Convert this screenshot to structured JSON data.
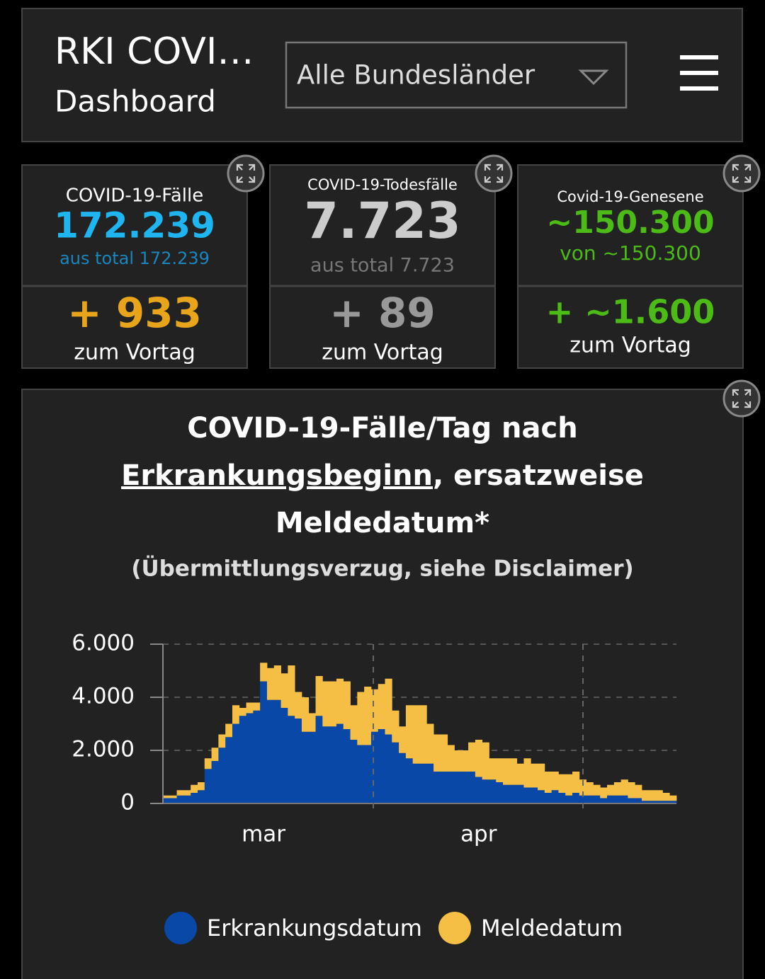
{
  "header": {
    "title": "RKI COVI…",
    "subtitle": "Dashboard",
    "dropdown": "Alle Bundesländer"
  },
  "cards": [
    {
      "label": "COVID-19-Fälle",
      "value": "172.239",
      "total": "aus total 172.239",
      "delta": "+ 933",
      "delta_label": "zum Vortag"
    },
    {
      "label": "COVID-19-Todesfälle",
      "value": "7.723",
      "total": "aus total 7.723",
      "delta": "+ 89",
      "delta_label": "zum Vortag"
    },
    {
      "label": "Covid-19-Genesene",
      "value": "~150.300",
      "total": "von ~150.300",
      "delta": "+ ~1.600",
      "delta_label": "zum Vortag"
    }
  ],
  "chart_data": {
    "type": "stacked_bar",
    "title": [
      "COVID-19-Fälle/Tag nach",
      "Erkrankungsbeginn",
      ", ersatzweise",
      "Meldedatum*"
    ],
    "subtitle": "(Übermittlungsverzug, siehe Disclaimer)",
    "categories": [
      null,
      null,
      null,
      null,
      null,
      null,
      null,
      null,
      null,
      null,
      null,
      null,
      null,
      null,
      "mar",
      null,
      null,
      null,
      null,
      null,
      null,
      null,
      null,
      null,
      null,
      null,
      null,
      null,
      null,
      null,
      null,
      null,
      null,
      null,
      null,
      null,
      null,
      null,
      null,
      null,
      null,
      null,
      null,
      null,
      null,
      "apr",
      null,
      null,
      null,
      null,
      null,
      null,
      null,
      null,
      null,
      null,
      null,
      null,
      null,
      null,
      null,
      null,
      null,
      null,
      null,
      null,
      null,
      null,
      null,
      null,
      null,
      null,
      null,
      null
    ],
    "series": [
      {
        "name": "Erkrankungsdatum",
        "color": "#0a48a8",
        "values": [
          200,
          200,
          300,
          300,
          400,
          500,
          1300,
          1600,
          2100,
          2500,
          3000,
          3300,
          3400,
          3500,
          4600,
          3900,
          3900,
          3600,
          3300,
          3200,
          2700,
          2700,
          3300,
          2900,
          2900,
          3000,
          2800,
          2400,
          2200,
          2200,
          2700,
          2800,
          2600,
          2300,
          1900,
          1700,
          1500,
          1500,
          1500,
          1200,
          1200,
          1200,
          1200,
          1200,
          1200,
          1000,
          900,
          900,
          800,
          700,
          700,
          700,
          600,
          600,
          500,
          400,
          500,
          400,
          300,
          400,
          300,
          300,
          300,
          200,
          300,
          300,
          300,
          200,
          200,
          100,
          100,
          100,
          100,
          100
        ]
      },
      {
        "name": "Meldedatum",
        "color": "#f5bf45",
        "values": [
          100,
          100,
          200,
          200,
          300,
          300,
          400,
          500,
          500,
          500,
          700,
          300,
          400,
          300,
          700,
          1200,
          1300,
          1300,
          1900,
          1000,
          1300,
          700,
          1500,
          1700,
          1700,
          1700,
          1800,
          1300,
          2000,
          2200,
          1600,
          1700,
          2100,
          1200,
          1000,
          2000,
          2200,
          2200,
          1500,
          1400,
          1400,
          1000,
          800,
          800,
          1100,
          1400,
          1400,
          800,
          900,
          1000,
          1000,
          800,
          1100,
          900,
          1000,
          800,
          700,
          700,
          800,
          800,
          600,
          500,
          400,
          400,
          400,
          500,
          600,
          600,
          500,
          400,
          400,
          400,
          300,
          200
        ]
      }
    ],
    "ylim": [
      0,
      6000
    ],
    "yticks": [
      0,
      {
        "value": 2000,
        "label": "2.000"
      },
      {
        "value": 4000,
        "label": "4.000"
      },
      {
        "value": 6000,
        "label": "6.000"
      }
    ],
    "grid": true
  }
}
